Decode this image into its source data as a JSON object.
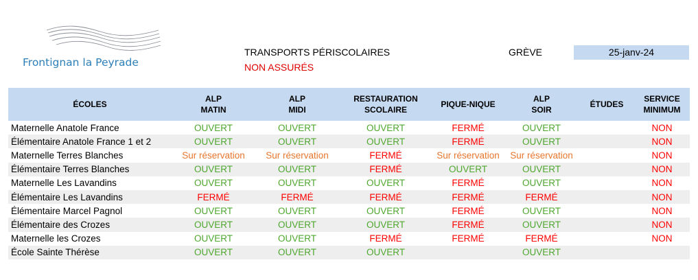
{
  "header": {
    "logo_text": "Frontignan la Peyrade",
    "title": "TRANSPORTS PÉRISCOLAIRES",
    "subtitle": "NON ASSURÉS",
    "event_label": "GRÈVE",
    "date": "25-janv-24"
  },
  "colors": {
    "header_fill": "#c5d9f1",
    "open": "#4ea72e",
    "closed": "#ff0000",
    "reservation": "#e8772e",
    "logo": "#2d7fb8",
    "stripe": "#eeeeee"
  },
  "table": {
    "columns": [
      {
        "key": "school",
        "line1": "ÉCOLES",
        "line2": ""
      },
      {
        "key": "alp_matin",
        "line1": "ALP",
        "line2": "MATIN"
      },
      {
        "key": "alp_midi",
        "line1": "ALP",
        "line2": "MIDI"
      },
      {
        "key": "restauration",
        "line1": "RESTAURATION",
        "line2": "SCOLAIRE"
      },
      {
        "key": "pique_nique",
        "line1": "PIQUE-NIQUE",
        "line2": ""
      },
      {
        "key": "alp_soir",
        "line1": "ALP",
        "line2": "SOIR"
      },
      {
        "key": "etudes",
        "line1": "ÉTUDES",
        "line2": ""
      },
      {
        "key": "service_minimum",
        "line1": "SERVICE",
        "line2": "MINIMUM"
      }
    ],
    "rows": [
      {
        "school": "Maternelle Anatole France",
        "alp_matin": "OUVERT",
        "alp_midi": "OUVERT",
        "restauration": "OUVERT",
        "pique_nique": "FERMÉ",
        "alp_soir": "OUVERT",
        "etudes": "",
        "service_minimum": "NON"
      },
      {
        "school": "Élémentaire Anatole France 1 et 2",
        "alp_matin": "OUVERT",
        "alp_midi": "OUVERT",
        "restauration": "OUVERT",
        "pique_nique": "FERMÉ",
        "alp_soir": "OUVERT",
        "etudes": "",
        "service_minimum": "NON"
      },
      {
        "school": "Maternelle Terres Blanches",
        "alp_matin": "Sur réservation",
        "alp_midi": "Sur réservation",
        "restauration": "FERMÉ",
        "pique_nique": "Sur réservation",
        "alp_soir": "Sur réservation",
        "etudes": "",
        "service_minimum": "NON"
      },
      {
        "school": "Élémentaire Terres Blanches",
        "alp_matin": "OUVERT",
        "alp_midi": "OUVERT",
        "restauration": "FERMÉ",
        "pique_nique": "OUVERT",
        "alp_soir": "OUVERT",
        "etudes": "",
        "service_minimum": "NON"
      },
      {
        "school": "Maternelle Les Lavandins",
        "alp_matin": "OUVERT",
        "alp_midi": "OUVERT",
        "restauration": "OUVERT",
        "pique_nique": "FERMÉ",
        "alp_soir": "OUVERT",
        "etudes": "",
        "service_minimum": "NON"
      },
      {
        "school": "Élémentaire Les Lavandins",
        "alp_matin": "FERMÉ",
        "alp_midi": "FERMÉ",
        "restauration": "FERMÉ",
        "pique_nique": "FERMÉ",
        "alp_soir": "FERMÉ",
        "etudes": "",
        "service_minimum": "NON"
      },
      {
        "school": "Élémentaire Marcel Pagnol",
        "alp_matin": "OUVERT",
        "alp_midi": "OUVERT",
        "restauration": "OUVERT",
        "pique_nique": "FERMÉ",
        "alp_soir": "OUVERT",
        "etudes": "",
        "service_minimum": "NON"
      },
      {
        "school": "Élémentaire des Crozes",
        "alp_matin": "OUVERT",
        "alp_midi": "OUVERT",
        "restauration": "OUVERT",
        "pique_nique": "FERMÉ",
        "alp_soir": "OUVERT",
        "etudes": "",
        "service_minimum": "NON"
      },
      {
        "school": "Maternelle les Crozes",
        "alp_matin": "OUVERT",
        "alp_midi": "OUVERT",
        "restauration": "FERMÉ",
        "pique_nique": "FERMÉ",
        "alp_soir": "FERMÉ",
        "etudes": "",
        "service_minimum": "NON"
      },
      {
        "school": "École Sainte Thérèse",
        "alp_matin": "OUVERT",
        "alp_midi": "OUVERT",
        "restauration": "OUVERT",
        "pique_nique": "",
        "alp_soir": "OUVERT",
        "etudes": "",
        "service_minimum": ""
      }
    ]
  }
}
